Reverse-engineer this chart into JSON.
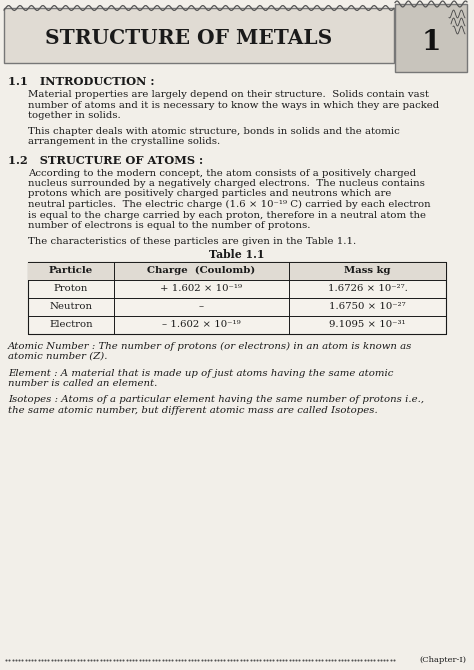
{
  "title": "STRUCTURE OF METALS",
  "chapter_num": "1",
  "bg_color": "#f2efe9",
  "section1_heading": "1.1   INTRODUCTION :",
  "section1_para1a": "Material properties are largely depend on their structure.  Solids contain vast",
  "section1_para1b": "number of atoms and it is necessary to know the ways in which they are packed",
  "section1_para1c": "together in solids.",
  "section1_para2a": "This chapter deals with atomic structure, bonds in solids and the atomic",
  "section1_para2b": "arrangement in the crystalline solids.",
  "section2_heading": "1.2   STRUCTURE OF ATOMS :",
  "section2_lines": [
    "According to the modern concept, the atom consists of a positively charged",
    "nucleus surrounded by a negatively charged electrons.  The nucleus contains",
    "protons which are positively charged particles and neutrons which are",
    "neutral particles.  The electric charge (1.6 × 10⁻¹⁹ C) carried by each electron",
    "is equal to the charge carried by each proton, therefore in a neutral atom the",
    "number of electrons is equal to the number of protons."
  ],
  "section2_para2": "The characteristics of these particles are given in the Table 1.1.",
  "table_title": "Table 1.1",
  "table_headers": [
    "Particle",
    "Charge  (Coulomb)",
    "Mass kg"
  ],
  "table_rows": [
    [
      "Proton",
      "+ 1.602 × 10⁻¹⁹",
      "1.6726 × 10⁻²⁷."
    ],
    [
      "Neutron",
      "–",
      "1.6750 × 10⁻²⁷"
    ],
    [
      "Electron",
      "– 1.602 × 10⁻¹⁹",
      "9.1095 × 10⁻³¹"
    ]
  ],
  "atomic_number_lines": [
    "Atomic Number : The number of protons (or electrons) in an atom is known as",
    "atomic number (Z)."
  ],
  "element_lines": [
    "Element : A material that is made up of just atoms having the same atomic",
    "number is called an element."
  ],
  "isotopes_lines": [
    "Isotopes : Atoms of a particular element having the same number of protons i.e.,",
    "the same atomic number, but different atomic mass are called Isotopes."
  ],
  "footer_text": "(Chapter-I)",
  "text_color": "#1a1a1a",
  "body_fontsize": 7.3,
  "heading_fontsize": 8.2,
  "title_fontsize": 14.5
}
